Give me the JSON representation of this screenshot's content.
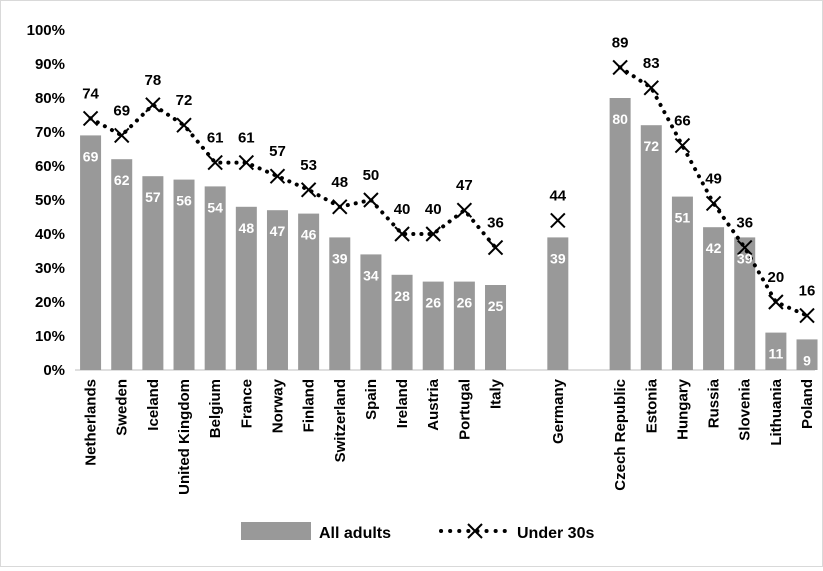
{
  "chart_data": {
    "type": "bar",
    "y_tick_labels": [
      "0%",
      "10%",
      "20%",
      "30%",
      "40%",
      "50%",
      "60%",
      "70%",
      "80%",
      "90%",
      "100%"
    ],
    "ylim": [
      0,
      100
    ],
    "grid": false,
    "legend_position": "bottom",
    "colors": {
      "bars": "#999999",
      "line": "#000000",
      "bar_labels": "#ffffff"
    },
    "groups": [
      [
        "Netherlands",
        "Sweden",
        "Iceland",
        "United Kingdom",
        "Belgium",
        "France",
        "Norway",
        "Finland",
        "Switzerland",
        "Spain",
        "Ireland",
        "Austria",
        "Portugal",
        "Italy"
      ],
      [
        "Germany"
      ],
      [
        "Czech Republic",
        "Estonia",
        "Hungary",
        "Russia",
        "Slovenia",
        "Lithuania",
        "Poland"
      ]
    ],
    "categories": [
      "Netherlands",
      "Sweden",
      "Iceland",
      "United Kingdom",
      "Belgium",
      "France",
      "Norway",
      "Finland",
      "Switzerland",
      "Spain",
      "Ireland",
      "Austria",
      "Portugal",
      "Italy",
      "Germany",
      "Czech Republic",
      "Estonia",
      "Hungary",
      "Russia",
      "Slovenia",
      "Lithuania",
      "Poland"
    ],
    "series": [
      {
        "name": "All adults",
        "kind": "bar",
        "values": [
          69,
          62,
          57,
          56,
          54,
          48,
          47,
          46,
          39,
          34,
          28,
          26,
          26,
          25,
          39,
          80,
          72,
          51,
          42,
          39,
          11,
          9
        ]
      },
      {
        "name": "Under 30s",
        "kind": "line",
        "marker": "x",
        "line_style": "dotted",
        "values": [
          74,
          69,
          78,
          72,
          61,
          61,
          57,
          53,
          48,
          50,
          40,
          40,
          47,
          36,
          44,
          89,
          83,
          66,
          49,
          36,
          20,
          16
        ]
      }
    ]
  }
}
